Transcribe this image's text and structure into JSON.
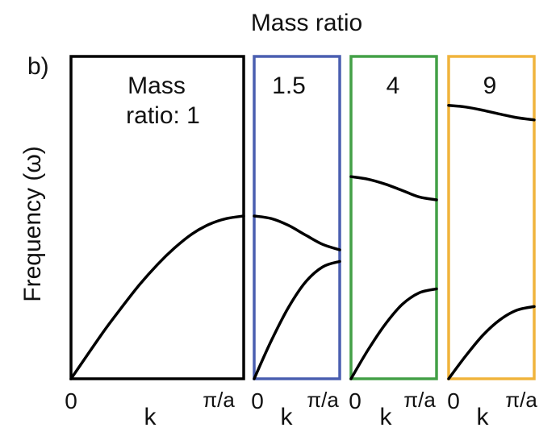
{
  "top_title": "Mass ratio",
  "panel_label": "b)",
  "ylabel": "Frequency (ω)",
  "xlabel": "k",
  "chart_data": {
    "type": "line",
    "title": "Mass ratio",
    "ylabel": "Frequency (ω)",
    "xlabel": "k",
    "x_ticks": [
      "0",
      "π/a"
    ],
    "x_range": [
      0,
      1
    ],
    "y_range": [
      0,
      1
    ],
    "grid": false,
    "panels": [
      {
        "mass_ratio": 1,
        "label_line1": "Mass",
        "label_line2": "ratio: 1",
        "frame_color": "#000000",
        "series": [
          {
            "branch": "acoustic",
            "x": [
              0,
              0.1,
              0.2,
              0.3,
              0.4,
              0.5,
              0.6,
              0.7,
              0.8,
              0.9,
              1.0
            ],
            "y": [
              0.0,
              0.078,
              0.155,
              0.226,
              0.294,
              0.354,
              0.406,
              0.449,
              0.479,
              0.497,
              0.505
            ]
          }
        ]
      },
      {
        "mass_ratio": 1.5,
        "label": "1.5",
        "frame_color": "#4a5fb0",
        "series": [
          {
            "branch": "acoustic",
            "x": [
              0,
              0.2,
              0.4,
              0.6,
              0.8,
              1.0
            ],
            "y": [
              0.0,
              0.118,
              0.221,
              0.3,
              0.347,
              0.364
            ]
          },
          {
            "branch": "optical",
            "x": [
              0,
              0.2,
              0.4,
              0.6,
              0.8,
              1.0
            ],
            "y": [
              0.505,
              0.497,
              0.476,
              0.446,
              0.417,
              0.4
            ]
          }
        ]
      },
      {
        "mass_ratio": 4,
        "label": "4",
        "frame_color": "#43a047",
        "series": [
          {
            "branch": "acoustic",
            "x": [
              0,
              0.2,
              0.4,
              0.6,
              0.8,
              1.0
            ],
            "y": [
              0.0,
              0.09,
              0.169,
              0.231,
              0.267,
              0.279
            ]
          },
          {
            "branch": "optical",
            "x": [
              0,
              0.2,
              0.4,
              0.6,
              0.8,
              1.0
            ],
            "y": [
              0.627,
              0.619,
              0.604,
              0.584,
              0.564,
              0.555
            ]
          }
        ]
      },
      {
        "mass_ratio": 9,
        "label": "9",
        "frame_color": "#f0b43c",
        "series": [
          {
            "branch": "acoustic",
            "x": [
              0,
              0.2,
              0.4,
              0.6,
              0.8,
              1.0
            ],
            "y": [
              0.0,
              0.071,
              0.135,
              0.183,
              0.213,
              0.224
            ]
          },
          {
            "branch": "optical",
            "x": [
              0,
              0.2,
              0.4,
              0.6,
              0.8,
              1.0
            ],
            "y": [
              0.848,
              0.843,
              0.833,
              0.821,
              0.81,
              0.803
            ]
          }
        ]
      }
    ]
  }
}
